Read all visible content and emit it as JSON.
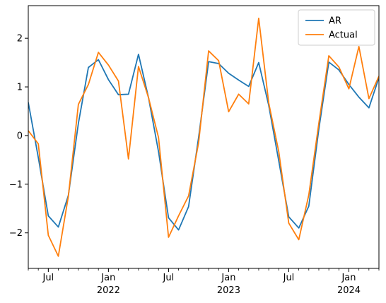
{
  "chart_data": {
    "type": "line",
    "x": [
      "2021-05",
      "2021-06",
      "2021-07",
      "2021-08",
      "2021-09",
      "2021-10",
      "2021-11",
      "2021-12",
      "2022-01",
      "2022-02",
      "2022-03",
      "2022-04",
      "2022-05",
      "2022-06",
      "2022-07",
      "2022-08",
      "2022-09",
      "2022-10",
      "2022-11",
      "2022-12",
      "2023-01",
      "2023-02",
      "2023-03",
      "2023-04",
      "2023-05",
      "2023-06",
      "2023-07",
      "2023-08",
      "2023-09",
      "2023-10",
      "2023-11",
      "2023-12",
      "2024-01",
      "2024-02",
      "2024-03",
      "2024-04"
    ],
    "series": [
      {
        "name": "AR",
        "color": "#1f77b4",
        "values": [
          0.68,
          -0.45,
          -1.65,
          -1.88,
          -1.23,
          0.25,
          1.4,
          1.56,
          1.15,
          0.84,
          0.85,
          1.67,
          0.78,
          -0.33,
          -1.69,
          -1.94,
          -1.46,
          -0.04,
          1.52,
          1.48,
          1.28,
          1.14,
          1.01,
          1.5,
          0.62,
          -0.52,
          -1.67,
          -1.9,
          -1.45,
          0.13,
          1.51,
          1.35,
          1.05,
          0.79,
          0.57,
          1.19
        ]
      },
      {
        "name": "Actual",
        "color": "#ff7f0e",
        "values": [
          0.1,
          -0.17,
          -2.05,
          -2.48,
          -1.25,
          0.64,
          1.05,
          1.71,
          1.45,
          1.12,
          -0.48,
          1.42,
          0.78,
          -0.04,
          -2.09,
          -1.65,
          -1.24,
          -0.15,
          1.74,
          1.54,
          0.49,
          0.85,
          0.65,
          2.41,
          0.67,
          -0.33,
          -1.8,
          -2.14,
          -1.22,
          0.25,
          1.64,
          1.41,
          0.96,
          1.83,
          0.76,
          1.22
        ]
      }
    ],
    "xlim": [
      "2021-05",
      "2024-04"
    ],
    "xticks": [
      {
        "value": "2021-07",
        "label": "Jul"
      },
      {
        "value": "2022-01",
        "label": "Jan",
        "year": "2022"
      },
      {
        "value": "2022-07",
        "label": "Jul"
      },
      {
        "value": "2023-01",
        "label": "Jan",
        "year": "2023"
      },
      {
        "value": "2023-07",
        "label": "Jul"
      },
      {
        "value": "2024-01",
        "label": "Jan",
        "year": "2024"
      }
    ],
    "ylim": [
      -2.73,
      2.67
    ],
    "yticks": [
      {
        "value": -2,
        "label": "−2"
      },
      {
        "value": -1,
        "label": "−1"
      },
      0,
      1,
      2
    ],
    "legend": "upper right"
  }
}
